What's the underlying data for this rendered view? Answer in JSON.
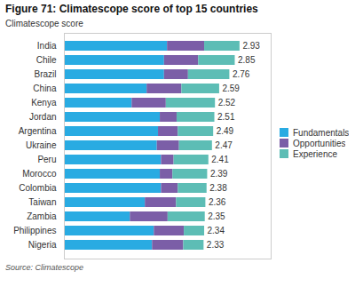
{
  "chart_data": {
    "type": "bar",
    "orientation": "horizontal",
    "stacked": true,
    "title": "Figure 71: Climatescope score of top 15 countries",
    "xlabel": "Climatescope score",
    "source": "Source: Climatescope",
    "categories": [
      "India",
      "Chile",
      "Brazil",
      "China",
      "Kenya",
      "Jordan",
      "Argentina",
      "Ukraine",
      "Peru",
      "Morocco",
      "Colombia",
      "Taiwan",
      "Zambia",
      "Philippines",
      "Nigeria"
    ],
    "series": [
      {
        "name": "Fundamentals",
        "color": "#29abe2",
        "values": [
          1.72,
          1.67,
          1.67,
          1.38,
          1.13,
          1.6,
          1.57,
          1.55,
          1.62,
          1.6,
          1.62,
          1.35,
          1.1,
          1.5,
          1.47
        ]
      },
      {
        "name": "Opportunities",
        "color": "#7b5ea7",
        "values": [
          0.62,
          0.57,
          0.4,
          0.58,
          0.57,
          0.28,
          0.33,
          0.37,
          0.21,
          0.21,
          0.28,
          0.52,
          0.63,
          0.5,
          0.52
        ]
      },
      {
        "name": "Experience",
        "color": "#5dbdb5",
        "values": [
          0.59,
          0.61,
          0.69,
          0.63,
          0.82,
          0.63,
          0.59,
          0.55,
          0.58,
          0.58,
          0.48,
          0.49,
          0.62,
          0.34,
          0.34
        ]
      }
    ],
    "totals": [
      2.93,
      2.85,
      2.76,
      2.59,
      2.52,
      2.51,
      2.49,
      2.47,
      2.41,
      2.39,
      2.38,
      2.36,
      2.35,
      2.34,
      2.33
    ],
    "xlim": [
      0,
      3.45
    ],
    "tick_labels": "y",
    "legend": "right"
  }
}
